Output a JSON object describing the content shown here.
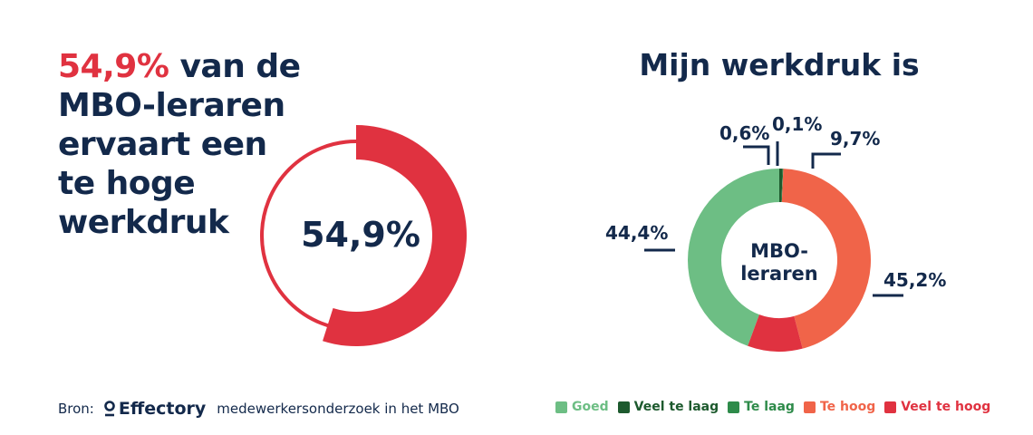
{
  "headline": {
    "highlight": "54,9%",
    "rest": " van de MBO-leraren ervaart een te hoge werkdruk"
  },
  "colors": {
    "red": "#e03240",
    "navy": "#13294b",
    "goed": "#6dbe84",
    "veel_te_laag": "#1d5a2e",
    "te_laag": "#2e8b4a",
    "te_hoog": "#f06449",
    "veel_te_hoog": "#e03240"
  },
  "chart_data": [
    {
      "type": "pie",
      "title": "",
      "center_label": "54,9%",
      "values": [
        54.9
      ],
      "labels": [
        ""
      ]
    },
    {
      "type": "pie",
      "title": "Mijn werkdruk is",
      "center_label": [
        "MBO-",
        "leraren"
      ],
      "labels": [
        "Goed",
        "Veel te laag",
        "Te laag",
        "Te hoog",
        "Veel te hoog"
      ],
      "values": [
        44.4,
        0.6,
        0.1,
        45.2,
        9.7
      ],
      "value_labels": [
        "44,4%",
        "0,6%",
        "0,1%",
        "45,2%",
        "9,7%"
      ],
      "legend_position": "bottom"
    }
  ],
  "source": {
    "prefix": "Bron:",
    "brand": "Effectory",
    "text": "medewerkersonderzoek in het MBO"
  }
}
